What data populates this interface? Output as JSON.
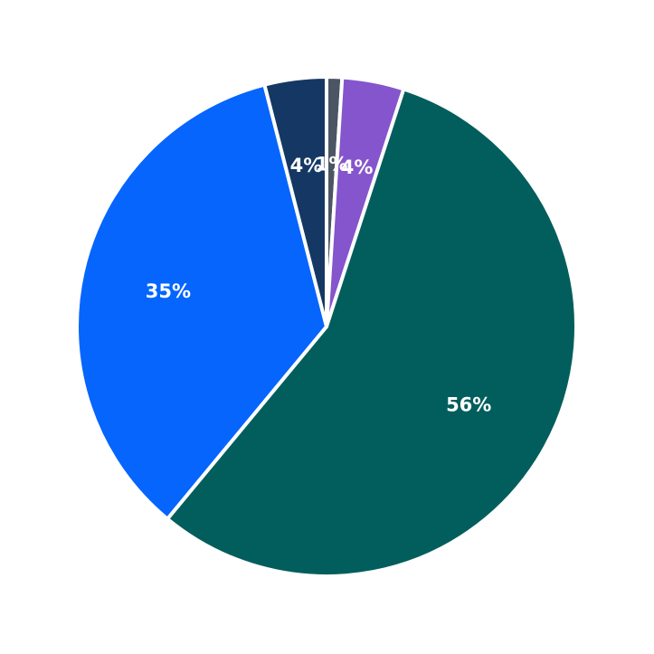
{
  "chart_data": {
    "type": "pie",
    "title": "",
    "start_angle_deg": 90,
    "direction": "clockwise",
    "slices": [
      {
        "label": "1%",
        "value": 1,
        "color": "#4b5563"
      },
      {
        "label": "4%",
        "value": 4,
        "color": "#8455cc"
      },
      {
        "label": "56%",
        "value": 56,
        "color": "#025e5c"
      },
      {
        "label": "35%",
        "value": 35,
        "color": "#0565fd"
      },
      {
        "label": "4%",
        "value": 4,
        "color": "#143863"
      }
    ]
  }
}
